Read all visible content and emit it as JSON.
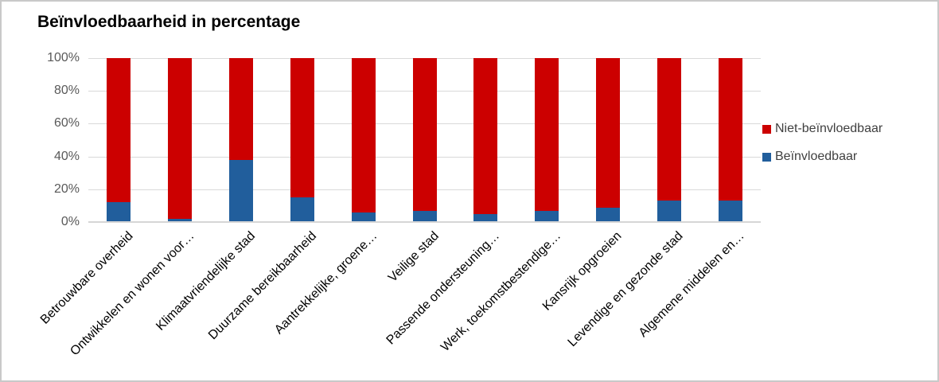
{
  "chart_data": {
    "type": "bar",
    "stacked": true,
    "orientation": "vertical",
    "title": "Beïnvloedbaarheid in percentage",
    "categories": [
      "Betrouwbare overheid",
      "Ontwikkelen en wonen voor…",
      "Klimaatvriendelijke stad",
      "Duurzame bereikbaarheid",
      "Aantrekkelijke, groene…",
      "Veilige stad",
      "Passende ondersteuning…",
      "Werk, toekomstbestendige…",
      "Kansrijk opgroeien",
      "Levendige en gezonde stad",
      "Algemene middelen en…"
    ],
    "series": [
      {
        "name": "Niet-beïnvloedbaar",
        "color": "#cc0000",
        "values": [
          88,
          98,
          62,
          85,
          94,
          93,
          95,
          93,
          91,
          87,
          87
        ]
      },
      {
        "name": "Beïnvloedbaar",
        "color": "#215e9c",
        "values": [
          12,
          2,
          38,
          15,
          6,
          7,
          5,
          7,
          9,
          13,
          13
        ]
      }
    ],
    "y_axis": {
      "min": 0,
      "max": 100,
      "unit": "%",
      "ticks": [
        {
          "value": 0,
          "label": "0%"
        },
        {
          "value": 20,
          "label": "20%"
        },
        {
          "value": 40,
          "label": "40%"
        },
        {
          "value": 60,
          "label": "60%"
        },
        {
          "value": 80,
          "label": "80%"
        },
        {
          "value": 100,
          "label": "100%"
        }
      ]
    },
    "legend_position": "right",
    "grid": true
  },
  "colors": {
    "background": "#ffffff",
    "border": "#c9c9c9",
    "gridline": "#d9d9d9",
    "axis_line": "#d6d6d6",
    "y_label": "#595959",
    "x_label": "#000000",
    "legend_text": "#404040",
    "title": "#000000"
  }
}
